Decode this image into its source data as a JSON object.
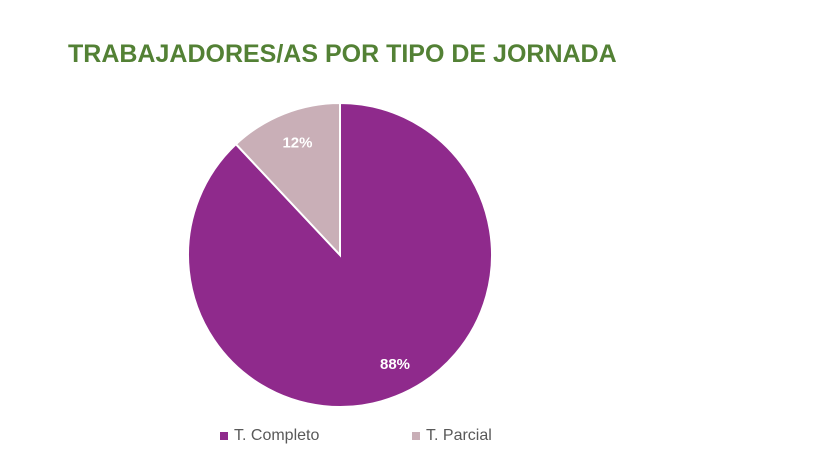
{
  "chart_data": {
    "type": "pie",
    "title": "TRABAJADORES/AS POR TIPO DE JORNADA",
    "categories": [
      "T. Completo",
      "T. Parcial"
    ],
    "values": [
      88,
      12
    ],
    "labels": [
      "88%",
      "12%"
    ],
    "colors": [
      "#8f2a8c",
      "#c9afb7"
    ],
    "legend_position": "bottom"
  }
}
